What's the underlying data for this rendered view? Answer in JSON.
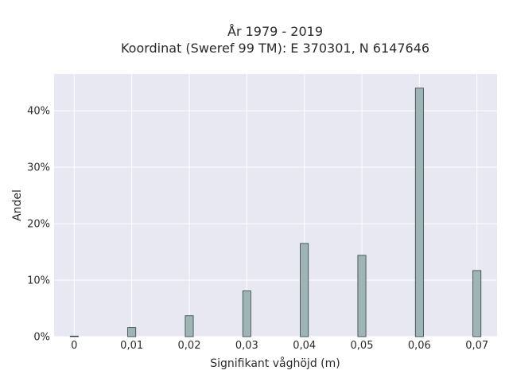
{
  "chart_data": {
    "type": "bar",
    "title_lines": [
      "År 1979 - 2019",
      "Koordinat (Sweref 99 TM): E 370301, N 6147646"
    ],
    "xlabel": "Signifikant våghöjd (m)",
    "ylabel": "Andel",
    "x": [
      0,
      0.01,
      0.02,
      0.03,
      0.04,
      0.05,
      0.06,
      0.07
    ],
    "values": [
      0.1,
      1.6,
      3.7,
      8.1,
      16.5,
      14.4,
      44.0,
      11.7
    ],
    "xlim": [
      -0.0035,
      0.0735
    ],
    "ylim": [
      0,
      46.5
    ],
    "bar_width": 0.0014,
    "x_ticks": [
      0,
      0.01,
      0.02,
      0.03,
      0.04,
      0.05,
      0.06,
      0.07
    ],
    "x_tick_labels": [
      "0",
      "0,01",
      "0,02",
      "0,03",
      "0,04",
      "0,05",
      "0,06",
      "0,07"
    ],
    "y_ticks": [
      0,
      10,
      20,
      30,
      40
    ],
    "y_tick_labels": [
      "0%",
      "10%",
      "20%",
      "30%",
      "40%"
    ],
    "grid": true,
    "colors": {
      "bar_fill": "#9fb5b5",
      "bar_stroke": "#2f3f3f",
      "plot_background": "#e8e8f2",
      "grid": "#ffffff"
    }
  }
}
